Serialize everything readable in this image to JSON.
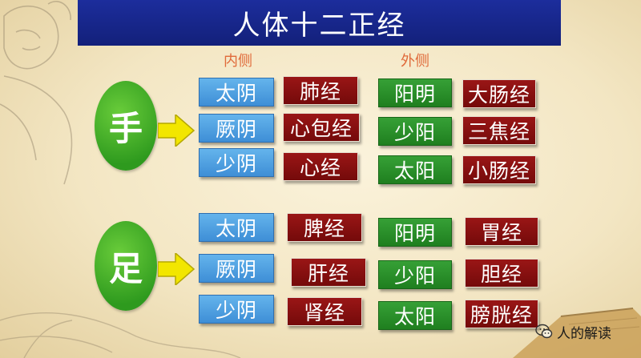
{
  "title": "人体十二正经",
  "column_labels": {
    "inner": "内侧",
    "outer": "外侧"
  },
  "groups": [
    {
      "label": "手",
      "rows": [
        {
          "inner_channel": "太阴",
          "inner_meridian": "肺经",
          "outer_channel": "阳明",
          "outer_meridian": "大肠经"
        },
        {
          "inner_channel": "厥阴",
          "inner_meridian": "心包经",
          "outer_channel": "少阳",
          "outer_meridian": "三焦经"
        },
        {
          "inner_channel": "少阴",
          "inner_meridian": "心经",
          "outer_channel": "太阳",
          "outer_meridian": "小肠经"
        }
      ]
    },
    {
      "label": "足",
      "rows": [
        {
          "inner_channel": "太阴",
          "inner_meridian": "脾经",
          "outer_channel": "阳明",
          "outer_meridian": "胃经"
        },
        {
          "inner_channel": "厥阴",
          "inner_meridian": "肝经",
          "outer_channel": "少阳",
          "outer_meridian": "胆经"
        },
        {
          "inner_channel": "少阴",
          "inner_meridian": "肾经",
          "outer_channel": "太阳",
          "outer_meridian": "膀胱经"
        }
      ]
    }
  ],
  "watermark": {
    "text": "人的解读",
    "icon": "wechat-icon"
  },
  "colors": {
    "title_bar": "#1a2a96",
    "yin_box": "#4a9ee0",
    "yang_box": "#2a8e2a",
    "meridian_box": "#850f0f",
    "circle": "#3da62a",
    "column_label": "#e06a3a",
    "arrow": "#f2e600"
  }
}
